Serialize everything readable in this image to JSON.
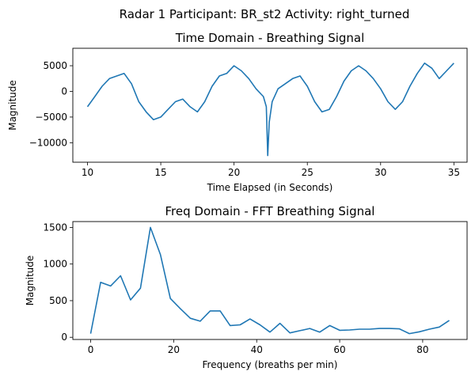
{
  "suptitle": "Radar 1 Participant: BR_st2  Activity: right_turned",
  "chart_data": [
    {
      "type": "line",
      "title": "Time Domain - Breathing Signal",
      "xlabel": "Time Elapsed (in Seconds)",
      "ylabel": "Magnitude",
      "xlim": [
        9.0,
        35.9
      ],
      "ylim": [
        -13800,
        8400
      ],
      "xticks": [
        10,
        15,
        20,
        25,
        30,
        35
      ],
      "yticks": [
        5000,
        0,
        -5000,
        -10000
      ],
      "grid": false,
      "series": [
        {
          "color": "#1f77b4",
          "x": [
            10.0,
            10.5,
            11.0,
            11.5,
            12.0,
            12.5,
            13.0,
            13.5,
            14.0,
            14.5,
            15.0,
            15.5,
            16.0,
            16.5,
            17.0,
            17.5,
            18.0,
            18.5,
            19.0,
            19.5,
            20.0,
            20.5,
            21.0,
            21.5,
            22.0,
            22.2,
            22.3,
            22.4,
            22.6,
            23.0,
            23.5,
            24.0,
            24.5,
            25.0,
            25.5,
            26.0,
            26.5,
            27.0,
            27.5,
            28.0,
            28.5,
            29.0,
            29.5,
            30.0,
            30.5,
            31.0,
            31.5,
            32.0,
            32.5,
            33.0,
            33.5,
            34.0,
            34.5,
            35.0
          ],
          "y": [
            -3000,
            -1000,
            1000,
            2500,
            3000,
            3500,
            1500,
            -2000,
            -4000,
            -5500,
            -5000,
            -3500,
            -2000,
            -1500,
            -3000,
            -4000,
            -2000,
            1000,
            3000,
            3500,
            5000,
            4000,
            2500,
            500,
            -1000,
            -3000,
            -12500,
            -6000,
            -2000,
            500,
            1500,
            2500,
            3000,
            1000,
            -2000,
            -4000,
            -3500,
            -1000,
            2000,
            4000,
            5000,
            4000,
            2500,
            500,
            -2000,
            -3500,
            -2000,
            1000,
            3500,
            5500,
            4500,
            2500,
            4000,
            5500
          ]
        }
      ]
    },
    {
      "type": "line",
      "title": "Freq Domain - FFT Breathing Signal",
      "xlabel": "Frequency (breaths per min)",
      "ylabel": "Magnitude",
      "xlim": [
        -4.3,
        90.7
      ],
      "ylim": [
        -30,
        1580
      ],
      "xticks": [
        0,
        20,
        40,
        60,
        80
      ],
      "yticks": [
        0,
        500,
        1000,
        1500
      ],
      "grid": false,
      "series": [
        {
          "color": "#1f77b4",
          "x": [
            0,
            2.4,
            4.8,
            7.2,
            9.6,
            12.0,
            14.4,
            16.8,
            19.2,
            21.6,
            24.0,
            26.4,
            28.8,
            31.2,
            33.6,
            36.0,
            38.4,
            40.8,
            43.2,
            45.6,
            48.0,
            50.4,
            52.8,
            55.2,
            57.6,
            60.0,
            62.4,
            64.8,
            67.2,
            69.6,
            72.0,
            74.4,
            76.8,
            79.2,
            81.6,
            84.0,
            86.4
          ],
          "y": [
            50,
            750,
            700,
            840,
            510,
            670,
            1500,
            1130,
            530,
            390,
            260,
            220,
            360,
            360,
            160,
            170,
            250,
            170,
            70,
            190,
            60,
            90,
            120,
            70,
            160,
            95,
            100,
            110,
            110,
            120,
            120,
            115,
            50,
            75,
            110,
            140,
            230
          ]
        }
      ]
    }
  ]
}
